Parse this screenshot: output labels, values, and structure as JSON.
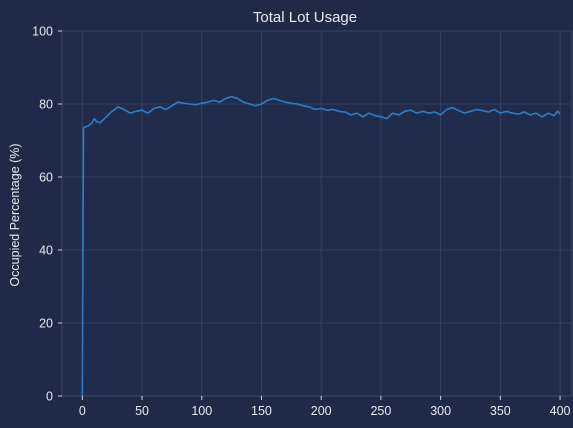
{
  "colors": {
    "background": "#1f2a48",
    "plot_background": "#212b4b",
    "line": "#2e7dc4",
    "text": "#e6e9f2",
    "grid": "#3a4768"
  },
  "chart_data": {
    "type": "line",
    "title": "Total Lot Usage",
    "xlabel": "",
    "ylabel": "Occupied Percentage (%)",
    "xlim": [
      -17,
      410
    ],
    "ylim": [
      0,
      100
    ],
    "xticks": [
      "0",
      "50",
      "100",
      "150",
      "200",
      "250",
      "300",
      "350",
      "400"
    ],
    "yticks": [
      "0",
      "20",
      "40",
      "60",
      "80",
      "100"
    ],
    "grid": true,
    "series": [
      {
        "color": "#2e7dc4",
        "x": [
          0,
          1,
          5,
          8,
          10,
          12,
          15,
          20,
          25,
          30,
          35,
          40,
          45,
          50,
          55,
          60,
          65,
          70,
          75,
          80,
          85,
          90,
          95,
          100,
          105,
          110,
          115,
          120,
          125,
          130,
          135,
          140,
          145,
          150,
          155,
          160,
          165,
          170,
          175,
          180,
          185,
          190,
          195,
          200,
          205,
          210,
          215,
          220,
          225,
          230,
          235,
          240,
          245,
          250,
          255,
          260,
          265,
          270,
          275,
          280,
          285,
          290,
          295,
          300,
          305,
          310,
          315,
          320,
          325,
          330,
          335,
          340,
          345,
          350,
          355,
          360,
          365,
          370,
          375,
          380,
          385,
          390,
          395,
          398,
          400
        ],
        "y": [
          0,
          73.5,
          74,
          74.8,
          76,
          75.2,
          74.8,
          76.5,
          78,
          79.2,
          78.5,
          77.5,
          78,
          78.3,
          77.5,
          78.8,
          79.2,
          78.5,
          79.5,
          80.5,
          80.2,
          80,
          79.8,
          80.2,
          80.5,
          81,
          80.5,
          81.5,
          82,
          81.5,
          80.5,
          80,
          79.5,
          80,
          81,
          81.5,
          81,
          80.5,
          80.2,
          80,
          79.5,
          79.2,
          78.5,
          78.8,
          78.3,
          78.5,
          78,
          77.8,
          77,
          77.5,
          76.5,
          77.5,
          76.8,
          76.5,
          76,
          77.5,
          77,
          78,
          78.3,
          77.5,
          78,
          77.5,
          77.8,
          77,
          78.5,
          79,
          78.2,
          77.5,
          78,
          78.5,
          78.2,
          77.8,
          78.5,
          77.5,
          78,
          77.5,
          77.2,
          77.8,
          77,
          77.5,
          76.5,
          77.5,
          76.8,
          78,
          77.2
        ]
      }
    ]
  }
}
